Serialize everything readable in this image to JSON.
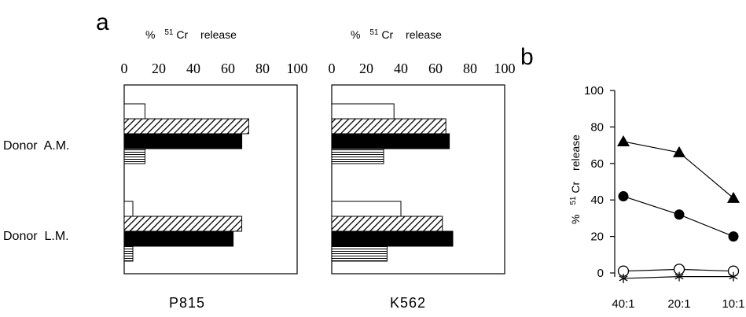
{
  "chart_data": [
    {
      "type": "bar",
      "orientation": "horizontal",
      "panel_letter": "a",
      "title": "P815",
      "xlabel_parts": [
        "%",
        "51",
        "Cr",
        "release"
      ],
      "xlim": [
        0,
        100
      ],
      "xticks": [
        "0",
        "20",
        "40",
        "60",
        "80",
        "100"
      ],
      "groups": [
        {
          "label": "Donor  A.M.",
          "values": [
            12,
            72,
            68,
            12
          ]
        },
        {
          "label": "Donor  L.M.",
          "values": [
            5,
            68,
            63,
            5
          ]
        }
      ],
      "bar_patterns": [
        "open",
        "diagonal-hatch",
        "solid",
        "horizontal-lines"
      ],
      "grid": false
    },
    {
      "type": "bar",
      "orientation": "horizontal",
      "title": "K562",
      "xlabel_parts": [
        "%",
        "51",
        "Cr",
        "release"
      ],
      "xlim": [
        0,
        100
      ],
      "xticks": [
        "0",
        "20",
        "40",
        "60",
        "80",
        "100"
      ],
      "groups": [
        {
          "label": "Donor  A.M.",
          "values": [
            36,
            66,
            68,
            30
          ]
        },
        {
          "label": "Donor  L.M.",
          "values": [
            40,
            64,
            70,
            32
          ]
        }
      ],
      "bar_patterns": [
        "open",
        "diagonal-hatch",
        "solid",
        "horizontal-lines"
      ],
      "grid": false
    },
    {
      "type": "line",
      "panel_letter": "b",
      "ylabel_parts": [
        "%",
        "51",
        "Cr",
        "release"
      ],
      "ylim": [
        0,
        100
      ],
      "yticks": [
        "0",
        "20",
        "40",
        "60",
        "80",
        "100"
      ],
      "categories": [
        "40:1",
        "20:1",
        "10:1"
      ],
      "series": [
        {
          "marker": "filled-triangle",
          "values": [
            72,
            66,
            41
          ]
        },
        {
          "marker": "filled-circle",
          "values": [
            42,
            32,
            20
          ]
        },
        {
          "marker": "open-circle",
          "values": [
            1,
            2,
            1
          ]
        },
        {
          "marker": "asterisk",
          "values": [
            -3,
            -2,
            -2
          ]
        }
      ],
      "grid": false
    }
  ]
}
